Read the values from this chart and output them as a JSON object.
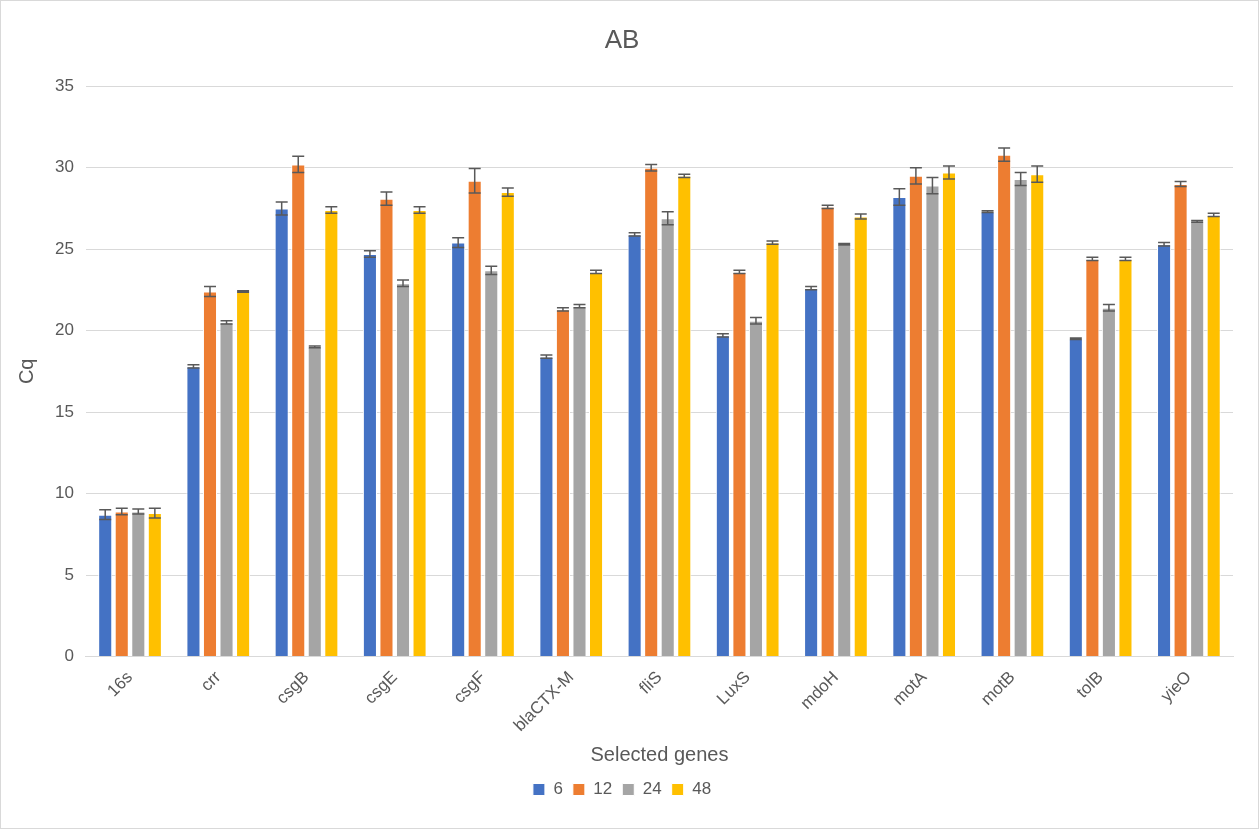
{
  "chart_data": {
    "type": "bar",
    "title": "AB",
    "xlabel": "Selected genes",
    "ylabel": "Cq",
    "categories": [
      "16s",
      "crr",
      "csgB",
      "csgE",
      "csgF",
      "blaCTX-M",
      "fliS",
      "LuxS",
      "mdoH",
      "motA",
      "motB",
      "tolB",
      "yieO"
    ],
    "series": [
      {
        "name": "6",
        "color": "#4472c4",
        "values": [
          8.7,
          17.8,
          27.5,
          24.7,
          25.4,
          18.4,
          25.9,
          19.7,
          22.6,
          28.2,
          27.3,
          19.5,
          25.3
        ],
        "errors": [
          0.3,
          0.1,
          0.4,
          0.2,
          0.3,
          0.1,
          0.1,
          0.1,
          0.1,
          0.5,
          0.05,
          0.05,
          0.1
        ]
      },
      {
        "name": "12",
        "color": "#ed7d31",
        "values": [
          8.9,
          22.4,
          30.2,
          28.1,
          29.2,
          21.3,
          30.0,
          23.6,
          27.6,
          29.5,
          30.8,
          24.4,
          29.0
        ],
        "errors": [
          0.2,
          0.3,
          0.5,
          0.4,
          0.75,
          0.1,
          0.2,
          0.1,
          0.1,
          0.5,
          0.4,
          0.1,
          0.15
        ]
      },
      {
        "name": "24",
        "color": "#a5a5a5",
        "values": [
          8.9,
          20.5,
          19.0,
          22.9,
          23.7,
          21.5,
          26.9,
          20.6,
          25.3,
          28.9,
          29.3,
          21.4,
          26.7
        ],
        "errors": [
          0.15,
          0.1,
          0.05,
          0.2,
          0.25,
          0.1,
          0.4,
          0.2,
          0.05,
          0.5,
          0.4,
          0.2,
          0.05
        ]
      },
      {
        "name": "48",
        "color": "#ffc000",
        "values": [
          8.8,
          22.4,
          27.4,
          27.4,
          28.5,
          23.6,
          29.5,
          25.4,
          27.0,
          29.7,
          29.6,
          24.4,
          27.1
        ],
        "errors": [
          0.3,
          0.05,
          0.2,
          0.2,
          0.25,
          0.1,
          0.1,
          0.1,
          0.15,
          0.4,
          0.5,
          0.1,
          0.1
        ]
      }
    ],
    "ylim": [
      0,
      35
    ],
    "yticks": [
      0,
      5,
      10,
      15,
      20,
      25,
      30,
      35
    ],
    "grid": "y",
    "legend": "bottom"
  }
}
